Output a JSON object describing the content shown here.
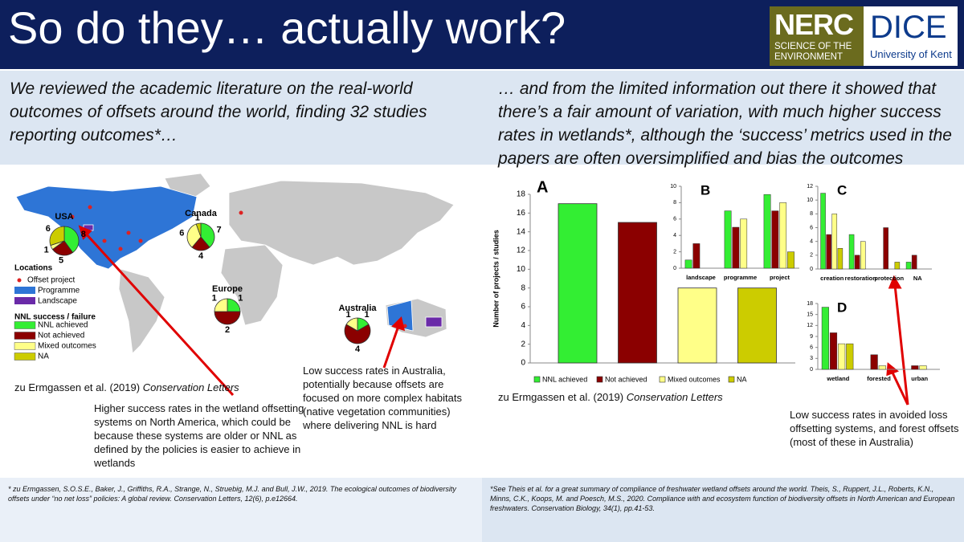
{
  "header": {
    "title": "So do they… actually work?",
    "logo_nerc": "NERC",
    "logo_nerc_sub": "SCIENCE OF THE ENVIRONMENT",
    "logo_dice": "DICE",
    "logo_kent": "University of Kent"
  },
  "intro_left": "We reviewed the academic literature on the real-world outcomes of offsets around the world, finding 32 studies reporting outcomes*…",
  "intro_right": "… and from the limited information out there it showed that there’s a fair amount of variation, with much higher success rates in wetlands*, although the ‘success’ metrics used in the papers are often oversimplified and bias the outcomes",
  "map": {
    "legend_locations": "Locations",
    "legend_offset": "Offset project",
    "legend_programme": "Programme",
    "legend_landscape": "Landscape",
    "legend_nnl": "NNL success / failure",
    "legend_items": [
      "NNL achieved",
      "Not achieved",
      "Mixed outcomes",
      "NA"
    ]
  },
  "citation_left": {
    "authors": "zu Ermgassen et al. (2019)",
    "journal": "Conservation Letters"
  },
  "citation_right": {
    "authors": "zu Ermgassen et al. (2019)",
    "journal": "Conservation Letters"
  },
  "annotations": [
    "Higher success rates in the wetland offsetting systems on North America, which could be because these systems are older or NNL as defined by the policies is easier to achieve in wetlands",
    "Low success rates in Australia, potentially because offsets are focused on more complex habitats (native vegetation communities) where delivering NNL is hard",
    "Low success rates in avoided loss offsetting systems, and forest offsets (most of these in Australia)"
  ],
  "footnote_left": "* zu Ermgassen, S.O.S.E., Baker, J., Griffiths, R.A., Strange, N., Struebig, M.J. and Bull, J.W., 2019. The ecological outcomes of biodiversity offsets under “no net loss” policies: A global review. Conservation Letters, 12(6), p.e12664.",
  "footnote_right": "*See Theis et al. for a great summary of compliance of freshwater wetland offsets around the world. Theis, S., Ruppert, J.L., Roberts, K.N., Minns, C.K., Koops, M. and Poesch, M.S., 2020. Compliance with and ecosystem function of biodiversity offsets in North American and European freshwaters. Conservation Biology, 34(1), pp.41-53.",
  "chart_data": [
    {
      "type": "pie",
      "title": "USA",
      "values": [
        8,
        5,
        1,
        6
      ],
      "colors": [
        "#33ee33",
        "#8b0000",
        "#ffff88",
        "#cccc00"
      ]
    },
    {
      "type": "pie",
      "title": "Canada",
      "values": [
        7,
        4,
        6,
        1
      ],
      "colors": [
        "#33ee33",
        "#8b0000",
        "#ffff88",
        "#cccc00"
      ]
    },
    {
      "type": "pie",
      "title": "Europe",
      "values": [
        1,
        2,
        1
      ],
      "colors": [
        "#33ee33",
        "#8b0000",
        "#ffff88"
      ]
    },
    {
      "type": "pie",
      "title": "Australia",
      "values": [
        1,
        4,
        1
      ],
      "colors": [
        "#33ee33",
        "#8b0000",
        "#ffff88"
      ]
    },
    {
      "type": "bar",
      "title": "A",
      "y_label": "Number of projects / studies",
      "categories": [
        "NNL achieved",
        "Not achieved",
        "Mixed outcomes",
        "NA"
      ],
      "values": [
        17,
        15,
        8,
        8
      ],
      "colors": [
        "#33ee33",
        "#8b0000",
        "#ffff88",
        "#cccc00"
      ],
      "ylim": [
        0,
        18
      ],
      "yticks": [
        0,
        2,
        4,
        6,
        8,
        10,
        12,
        14,
        16,
        18
      ],
      "legend": true
    },
    {
      "type": "grouped_bar",
      "title": "B",
      "categories": [
        "landscape",
        "programme",
        "project"
      ],
      "series": [
        {
          "color": "#33ee33",
          "values": [
            1,
            7,
            9
          ]
        },
        {
          "color": "#8b0000",
          "values": [
            3,
            5,
            7
          ]
        },
        {
          "color": "#ffff88",
          "values": [
            0,
            6,
            8
          ]
        },
        {
          "color": "#cccc00",
          "values": [
            0,
            0,
            2
          ]
        }
      ],
      "ylim": [
        0,
        10
      ],
      "yticks": [
        0,
        2,
        4,
        6,
        8,
        10
      ]
    },
    {
      "type": "grouped_bar",
      "title": "C",
      "categories": [
        "creation",
        "restoration",
        "protection",
        "NA"
      ],
      "series": [
        {
          "color": "#33ee33",
          "values": [
            11,
            5,
            0,
            1
          ]
        },
        {
          "color": "#8b0000",
          "values": [
            5,
            2,
            6,
            2
          ]
        },
        {
          "color": "#ffff88",
          "values": [
            8,
            4,
            0,
            0
          ]
        },
        {
          "color": "#cccc00",
          "values": [
            3,
            0,
            1,
            0
          ]
        }
      ],
      "ylim": [
        0,
        12
      ],
      "yticks": [
        0,
        2,
        4,
        6,
        8,
        10,
        12
      ]
    },
    {
      "type": "grouped_bar",
      "title": "D",
      "categories": [
        "wetland",
        "forested",
        "urban"
      ],
      "series": [
        {
          "color": "#33ee33",
          "values": [
            17,
            0,
            0
          ]
        },
        {
          "color": "#8b0000",
          "values": [
            10,
            4,
            1
          ]
        },
        {
          "color": "#ffff88",
          "values": [
            7,
            1,
            1
          ]
        },
        {
          "color": "#cccc00",
          "values": [
            7,
            0,
            0
          ]
        }
      ],
      "ylim": [
        0,
        18
      ],
      "yticks": [
        0,
        3,
        6,
        9,
        12,
        15,
        18
      ]
    }
  ]
}
